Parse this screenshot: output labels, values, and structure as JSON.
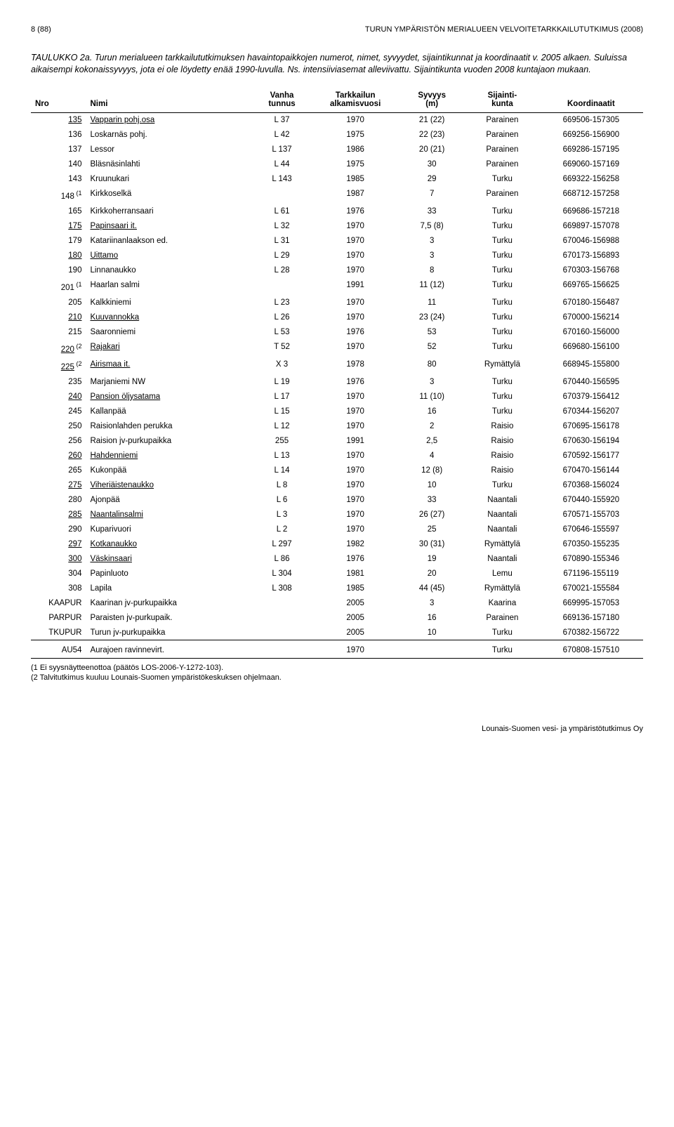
{
  "header": {
    "page_number": "8 (88)",
    "header_text": "TURUN YMPÄRISTÖN MERIALUEEN VELVOITETARKKAILUTUTKIMUS (2008)"
  },
  "title": {
    "label": "TAULUKKO 2a.",
    "desc": "Turun merialueen tarkkailututkimuksen havaintopaikkojen numerot, nimet, syvyydet, sijaintikunnat ja koordinaatit v. 2005 alkaen. Suluissa aikaisempi kokonaissyvyys, jota ei ole löydetty enää 1990-luvulla. Ns. intensiiviasemat alleviivattu. Sijaintikunta vuoden 2008 kuntajaon mukaan."
  },
  "columns": {
    "c0": "Nro",
    "c1": "Nimi",
    "c2a": "Vanha",
    "c2b": "tunnus",
    "c3a": "Tarkkailun",
    "c3b": "alkamisvuosi",
    "c4a": "Syvyys",
    "c4b": "(m)",
    "c5a": "Sijainti-",
    "c5b": "kunta",
    "c6": "Koordinaatit"
  },
  "rows": [
    {
      "nro": "135",
      "name": "Vapparin pohj.osa",
      "u": true,
      "vanha": "L 37",
      "year": "1970",
      "depth": "21 (22)",
      "kunta": "Parainen",
      "coord": "669506-157305"
    },
    {
      "nro": "136",
      "name": "Loskarnäs pohj.",
      "u": false,
      "vanha": "L 42",
      "year": "1975",
      "depth": "22 (23)",
      "kunta": "Parainen",
      "coord": "669256-156900"
    },
    {
      "nro": "137",
      "name": "Lessor",
      "u": false,
      "vanha": "L 137",
      "year": "1986",
      "depth": "20 (21)",
      "kunta": "Parainen",
      "coord": "669286-157195"
    },
    {
      "nro": "140",
      "name": "Bläsnäsinlahti",
      "u": false,
      "vanha": "L 44",
      "year": "1975",
      "depth": "30",
      "kunta": "Parainen",
      "coord": "669060-157169"
    },
    {
      "nro": "143",
      "name": "Kruunukari",
      "u": false,
      "vanha": "L 143",
      "year": "1985",
      "depth": "29",
      "kunta": "Turku",
      "coord": "669322-156258"
    },
    {
      "nro": "148",
      "sup": "(1",
      "name": "Kirkkoselkä",
      "u": false,
      "vanha": "",
      "year": "1987",
      "depth": "7",
      "kunta": "Parainen",
      "coord": "668712-157258"
    },
    {
      "nro": "165",
      "name": "Kirkkoherransaari",
      "u": false,
      "vanha": "L 61",
      "year": "1976",
      "depth": "33",
      "kunta": "Turku",
      "coord": "669686-157218"
    },
    {
      "nro": "175",
      "name": "Papinsaari it.",
      "u": true,
      "vanha": "L 32",
      "year": "1970",
      "depth": "7,5 (8)",
      "kunta": "Turku",
      "coord": "669897-157078"
    },
    {
      "nro": "179",
      "name": "Katariinanlaakson ed.",
      "u": false,
      "vanha": "L 31",
      "year": "1970",
      "depth": "3",
      "kunta": "Turku",
      "coord": "670046-156988"
    },
    {
      "nro": "180",
      "name": "Uittamo",
      "u": true,
      "vanha": "L 29",
      "year": "1970",
      "depth": "3",
      "kunta": "Turku",
      "coord": "670173-156893"
    },
    {
      "nro": "190",
      "name": "Linnanaukko",
      "u": false,
      "vanha": "L 28",
      "year": "1970",
      "depth": "8",
      "kunta": "Turku",
      "coord": "670303-156768"
    },
    {
      "nro": "201",
      "sup": "(1",
      "name": "Haarlan salmi",
      "u": false,
      "vanha": "",
      "year": "1991",
      "depth": "11 (12)",
      "kunta": "Turku",
      "coord": "669765-156625"
    },
    {
      "nro": "205",
      "name": "Kalkkiniemi",
      "u": false,
      "vanha": "L 23",
      "year": "1970",
      "depth": "11",
      "kunta": "Turku",
      "coord": "670180-156487"
    },
    {
      "nro": "210",
      "name": "Kuuvannokka",
      "u": true,
      "vanha": "L 26",
      "year": "1970",
      "depth": "23 (24)",
      "kunta": "Turku",
      "coord": "670000-156214"
    },
    {
      "nro": "215",
      "name": "Saaronniemi",
      "u": false,
      "vanha": "L 53",
      "year": "1976",
      "depth": "53",
      "kunta": "Turku",
      "coord": "670160-156000"
    },
    {
      "nro": "220",
      "sup": "(2",
      "name": "Rajakari",
      "u": true,
      "vanha": "T 52",
      "year": "1970",
      "depth": "52",
      "kunta": "Turku",
      "coord": "669680-156100"
    },
    {
      "nro": "225",
      "sup": "(2",
      "name": "Airismaa it.",
      "u": true,
      "vanha": "X 3",
      "year": "1978",
      "depth": "80",
      "kunta": "Rymättylä",
      "coord": "668945-155800"
    },
    {
      "nro": "235",
      "name": "Marjaniemi NW",
      "u": false,
      "vanha": "L 19",
      "year": "1976",
      "depth": "3",
      "kunta": "Turku",
      "coord": "670440-156595"
    },
    {
      "nro": "240",
      "name": "Pansion öljysatama",
      "u": true,
      "vanha": "L 17",
      "year": "1970",
      "depth": "11 (10)",
      "kunta": "Turku",
      "coord": "670379-156412"
    },
    {
      "nro": "245",
      "name": "Kallanpää",
      "u": false,
      "vanha": "L 15",
      "year": "1970",
      "depth": "16",
      "kunta": "Turku",
      "coord": "670344-156207"
    },
    {
      "nro": "250",
      "name": "Raisionlahden perukka",
      "u": false,
      "vanha": "L 12",
      "year": "1970",
      "depth": "2",
      "kunta": "Raisio",
      "coord": "670695-156178"
    },
    {
      "nro": "256",
      "name": "Raision jv-purkupaikka",
      "u": false,
      "vanha": "255",
      "year": "1991",
      "depth": "2,5",
      "kunta": "Raisio",
      "coord": "670630-156194"
    },
    {
      "nro": "260",
      "name": "Hahdenniemi",
      "u": true,
      "vanha": "L 13",
      "year": "1970",
      "depth": "4",
      "kunta": "Raisio",
      "coord": "670592-156177"
    },
    {
      "nro": "265",
      "name": "Kukonpää",
      "u": false,
      "vanha": "L 14",
      "year": "1970",
      "depth": "12 (8)",
      "kunta": "Raisio",
      "coord": "670470-156144"
    },
    {
      "nro": "275",
      "name": "Viheriäistenaukko",
      "u": true,
      "vanha": "L 8",
      "year": "1970",
      "depth": "10",
      "kunta": "Turku",
      "coord": "670368-156024"
    },
    {
      "nro": "280",
      "name": "Ajonpää",
      "u": false,
      "vanha": "L 6",
      "year": "1970",
      "depth": "33",
      "kunta": "Naantali",
      "coord": "670440-155920"
    },
    {
      "nro": "285",
      "name": "Naantalinsalmi",
      "u": true,
      "vanha": "L 3",
      "year": "1970",
      "depth": "26 (27)",
      "kunta": "Naantali",
      "coord": "670571-155703"
    },
    {
      "nro": "290",
      "name": "Kuparivuori",
      "u": false,
      "vanha": "L 2",
      "year": "1970",
      "depth": "25",
      "kunta": "Naantali",
      "coord": "670646-155597"
    },
    {
      "nro": "297",
      "name": "Kotkanaukko",
      "u": true,
      "vanha": "L 297",
      "year": "1982",
      "depth": "30 (31)",
      "kunta": "Rymättylä",
      "coord": "670350-155235"
    },
    {
      "nro": "300",
      "name": "Väskinsaari",
      "u": true,
      "vanha": "L 86",
      "year": "1976",
      "depth": "19",
      "kunta": "Naantali",
      "coord": "670890-155346"
    },
    {
      "nro": "304",
      "name": "Papinluoto",
      "u": false,
      "vanha": "L 304",
      "year": "1981",
      "depth": "20",
      "kunta": "Lemu",
      "coord": "671196-155119"
    },
    {
      "nro": "308",
      "name": "Lapila",
      "u": false,
      "vanha": "L 308",
      "year": "1985",
      "depth": "44 (45)",
      "kunta": "Rymättylä",
      "coord": "670021-155584"
    },
    {
      "nro": "KAAPUR",
      "name": "Kaarinan jv-purkupaikka",
      "u": false,
      "vanha": "",
      "year": "2005",
      "depth": "3",
      "kunta": "Kaarina",
      "coord": "669995-157053"
    },
    {
      "nro": "PARPUR",
      "name": "Paraisten jv-purkupaik.",
      "u": false,
      "vanha": "",
      "year": "2005",
      "depth": "16",
      "kunta": "Parainen",
      "coord": "669136-157180"
    },
    {
      "nro": "TKUPUR",
      "name": "Turun jv-purkupaikka",
      "u": false,
      "vanha": "",
      "year": "2005",
      "depth": "10",
      "kunta": "Turku",
      "coord": "670382-156722"
    }
  ],
  "lastrow": {
    "nro": "AU54",
    "name": "Aurajoen ravinnevirt.",
    "vanha": "",
    "year": "1970",
    "depth": "",
    "kunta": "Turku",
    "coord": "670808-157510"
  },
  "footnotes": {
    "f1": "(1 Ei syysnäytteenottoa (päätös LOS-2006-Y-1272-103).",
    "f2": "(2 Talvitutkimus kuuluu Lounais-Suomen ympäristökeskuksen ohjelmaan."
  },
  "footer": "Lounais-Suomen vesi- ja ympäristötutkimus Oy"
}
